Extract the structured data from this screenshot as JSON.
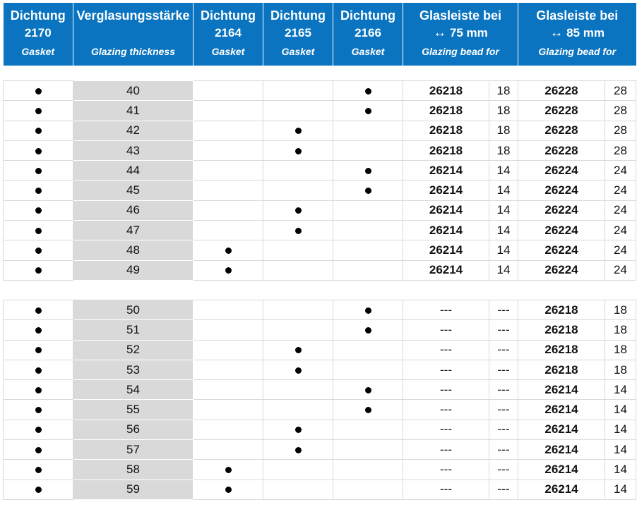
{
  "header": {
    "col1": {
      "line1": "Dichtung",
      "line2": "2170",
      "line3": "Gasket"
    },
    "col2": {
      "line1": "Verglasungsstärke",
      "line3": "Glazing thickness"
    },
    "col3": {
      "line1": "Dichtung",
      "line2": "2164",
      "line3": "Gasket"
    },
    "col4": {
      "line1": "Dichtung",
      "line2": "2165",
      "line3": "Gasket"
    },
    "col5": {
      "line1": "Dichtung",
      "line2": "2166",
      "line3": "Gasket"
    },
    "col6": {
      "line1": "Glasleiste bei",
      "arrow": "↔",
      "line2": "75 mm",
      "line3": "Glazing bead for"
    },
    "col7": {
      "line1": "Glasleiste bei",
      "arrow": "↔",
      "line2": "85 mm",
      "line3": "Glazing bead for"
    }
  },
  "rows": [
    {
      "g2170": true,
      "thickness": "40",
      "g2164": false,
      "g2165": false,
      "g2166": true,
      "bead75": "26218",
      "n75": "18",
      "bead85": "26228",
      "n85": "28"
    },
    {
      "g2170": true,
      "thickness": "41",
      "g2164": false,
      "g2165": false,
      "g2166": true,
      "bead75": "26218",
      "n75": "18",
      "bead85": "26228",
      "n85": "28"
    },
    {
      "g2170": true,
      "thickness": "42",
      "g2164": false,
      "g2165": true,
      "g2166": false,
      "bead75": "26218",
      "n75": "18",
      "bead85": "26228",
      "n85": "28"
    },
    {
      "g2170": true,
      "thickness": "43",
      "g2164": false,
      "g2165": true,
      "g2166": false,
      "bead75": "26218",
      "n75": "18",
      "bead85": "26228",
      "n85": "28"
    },
    {
      "g2170": true,
      "thickness": "44",
      "g2164": false,
      "g2165": false,
      "g2166": true,
      "bead75": "26214",
      "n75": "14",
      "bead85": "26224",
      "n85": "24"
    },
    {
      "g2170": true,
      "thickness": "45",
      "g2164": false,
      "g2165": false,
      "g2166": true,
      "bead75": "26214",
      "n75": "14",
      "bead85": "26224",
      "n85": "24"
    },
    {
      "g2170": true,
      "thickness": "46",
      "g2164": false,
      "g2165": true,
      "g2166": false,
      "bead75": "26214",
      "n75": "14",
      "bead85": "26224",
      "n85": "24"
    },
    {
      "g2170": true,
      "thickness": "47",
      "g2164": false,
      "g2165": true,
      "g2166": false,
      "bead75": "26214",
      "n75": "14",
      "bead85": "26224",
      "n85": "24"
    },
    {
      "g2170": true,
      "thickness": "48",
      "g2164": true,
      "g2165": false,
      "g2166": false,
      "bead75": "26214",
      "n75": "14",
      "bead85": "26224",
      "n85": "24"
    },
    {
      "g2170": true,
      "thickness": "49",
      "g2164": true,
      "g2165": false,
      "g2166": false,
      "bead75": "26214",
      "n75": "14",
      "bead85": "26224",
      "n85": "24"
    },
    {
      "separator": true
    },
    {
      "g2170": true,
      "thickness": "50",
      "g2164": false,
      "g2165": false,
      "g2166": true,
      "bead75": "---",
      "n75": "---",
      "bead85": "26218",
      "n85": "18"
    },
    {
      "g2170": true,
      "thickness": "51",
      "g2164": false,
      "g2165": false,
      "g2166": true,
      "bead75": "---",
      "n75": "---",
      "bead85": "26218",
      "n85": "18"
    },
    {
      "g2170": true,
      "thickness": "52",
      "g2164": false,
      "g2165": true,
      "g2166": false,
      "bead75": "---",
      "n75": "---",
      "bead85": "26218",
      "n85": "18"
    },
    {
      "g2170": true,
      "thickness": "53",
      "g2164": false,
      "g2165": true,
      "g2166": false,
      "bead75": "---",
      "n75": "---",
      "bead85": "26218",
      "n85": "18"
    },
    {
      "g2170": true,
      "thickness": "54",
      "g2164": false,
      "g2165": false,
      "g2166": true,
      "bead75": "---",
      "n75": "---",
      "bead85": "26214",
      "n85": "14"
    },
    {
      "g2170": true,
      "thickness": "55",
      "g2164": false,
      "g2165": false,
      "g2166": true,
      "bead75": "---",
      "n75": "---",
      "bead85": "26214",
      "n85": "14"
    },
    {
      "g2170": true,
      "thickness": "56",
      "g2164": false,
      "g2165": true,
      "g2166": false,
      "bead75": "---",
      "n75": "---",
      "bead85": "26214",
      "n85": "14"
    },
    {
      "g2170": true,
      "thickness": "57",
      "g2164": false,
      "g2165": true,
      "g2166": false,
      "bead75": "---",
      "n75": "---",
      "bead85": "26214",
      "n85": "14"
    },
    {
      "g2170": true,
      "thickness": "58",
      "g2164": true,
      "g2165": false,
      "g2166": false,
      "bead75": "---",
      "n75": "---",
      "bead85": "26214",
      "n85": "14"
    },
    {
      "g2170": true,
      "thickness": "59",
      "g2164": true,
      "g2165": false,
      "g2166": false,
      "bead75": "---",
      "n75": "---",
      "bead85": "26214",
      "n85": "14"
    }
  ],
  "colors": {
    "header_bg": "#0a74c0",
    "thickness_bg": "#d9d9d9",
    "border": "#d9d9d9"
  },
  "icons": {
    "marker": "filled-dot-icon",
    "arrow": "left-right-arrow-icon"
  }
}
